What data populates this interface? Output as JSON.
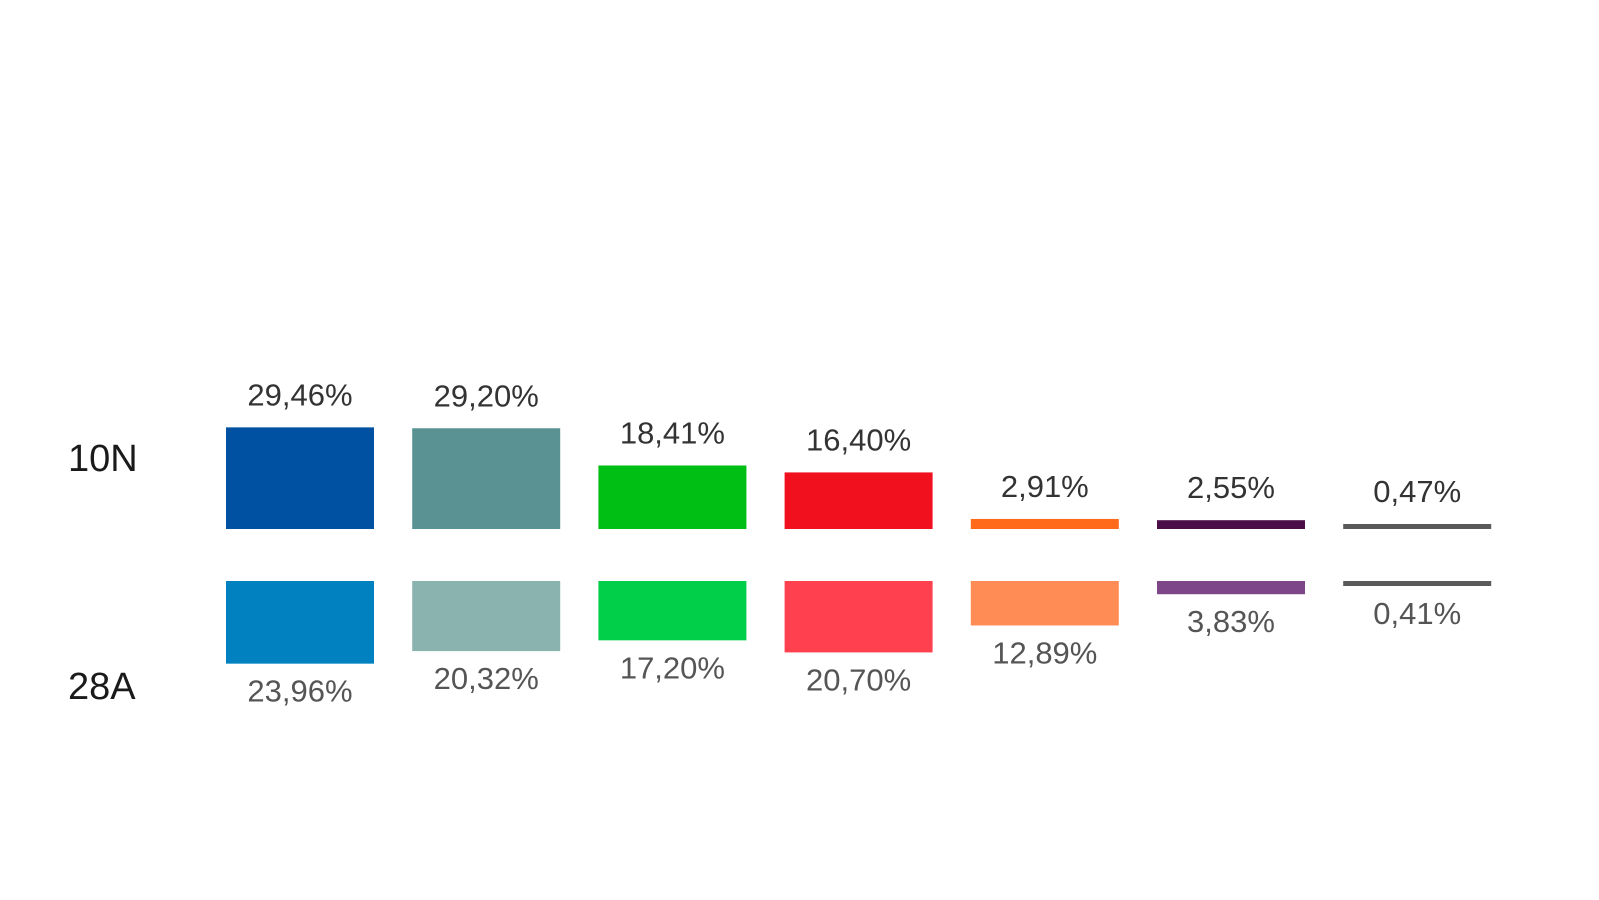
{
  "chart_data": {
    "type": "bar",
    "categories": [
      "",
      "",
      "",
      "",
      "",
      "",
      ""
    ],
    "series": [
      {
        "name": "10N",
        "values": [
          29.46,
          29.2,
          18.41,
          16.4,
          2.91,
          2.55,
          0.47
        ],
        "labels": [
          "29,46%",
          "29,20%",
          "18,41%",
          "16,40%",
          "2,91%",
          "2,55%",
          "0,47%"
        ],
        "colors": [
          "#0051a1",
          "#5a9293",
          "#00bf14",
          "#f0101e",
          "#ff6a1a",
          "#4b0d47",
          "#5a5a5a"
        ]
      },
      {
        "name": "28A",
        "values": [
          23.96,
          20.32,
          17.2,
          20.7,
          12.89,
          3.83,
          0.41
        ],
        "labels": [
          "23,96%",
          "20,32%",
          "17,20%",
          "20,70%",
          "12,89%",
          "3,83%",
          "0,41%"
        ],
        "colors": [
          "#0281c0",
          "#8ab3b0",
          "#01cf4a",
          "#ff414f",
          "#ff8c54",
          "#7d4688",
          "#5a5a5a"
        ]
      }
    ],
    "orientation": "mirrored-vertical",
    "grid": false,
    "legend": "none"
  }
}
